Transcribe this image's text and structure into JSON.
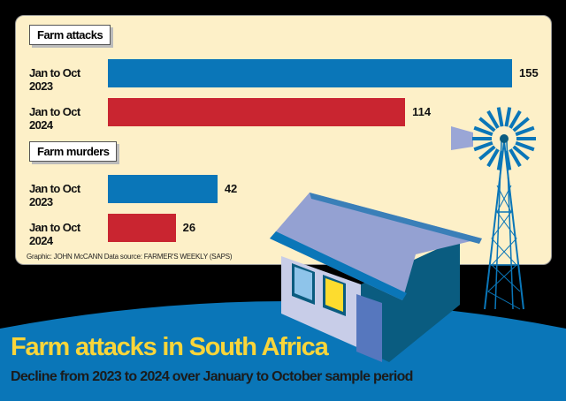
{
  "chart_data": {
    "type": "bar",
    "orientation": "horizontal",
    "groups": [
      {
        "title": "Farm attacks",
        "categories": [
          "Jan to Oct 2023",
          "Jan to Oct 2024"
        ],
        "values": [
          155,
          114
        ]
      },
      {
        "title": "Farm murders",
        "categories": [
          "Jan to Oct 2023",
          "Jan to Oct 2024"
        ],
        "values": [
          42,
          26
        ]
      }
    ],
    "colors": {
      "2023": "#0a76b8",
      "2024": "#c92530"
    },
    "title": "Farm attacks in South Africa",
    "subtitle": "Decline from 2023 to 2024 over January to October sample period",
    "credit": "Graphic: JOHN McCANN  Data source: FARMER'S WEEKLY (SAPS)",
    "grid": false,
    "legend": "none"
  }
}
